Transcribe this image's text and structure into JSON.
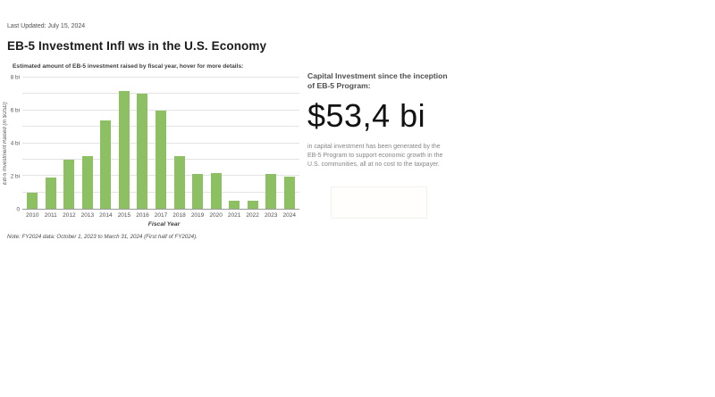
{
  "page": {
    "last_updated": "Last Updated: July 15, 2024",
    "title": "EB-5 Investment Infl ws in the U.S. Economy"
  },
  "chart": {
    "subtitle": "Estimated amount of EB-5 investment raised by fiscal year, hover for more details:",
    "note": "Note: FY2024 data: October 1, 2023 to March 31, 2024 (First half of FY2024)."
  },
  "chart_data": {
    "type": "bar",
    "title": "Estimated amount of EB-5 investment raised by fiscal year",
    "categories": [
      "2010",
      "2011",
      "2012",
      "2013",
      "2014",
      "2015",
      "2016",
      "2017",
      "2018",
      "2019",
      "2020",
      "2021",
      "2022",
      "2023",
      "2024"
    ],
    "values": [
      1.0,
      1.9,
      3.0,
      3.2,
      5.4,
      7.2,
      7.0,
      6.0,
      3.2,
      2.1,
      2.2,
      0.5,
      0.5,
      2.15,
      1.95
    ],
    "xlabel": "Fiscal Year",
    "ylabel": "EB-5 Investment Raised (in $USD)",
    "ylim": [
      0,
      8
    ],
    "grid_step": 1,
    "grid_on": true,
    "yticks": [
      {
        "v": 0,
        "label": "0"
      },
      {
        "v": 2,
        "label": "2 bi"
      },
      {
        "v": 4,
        "label": "4 bi"
      },
      {
        "v": 6,
        "label": "6 bi"
      },
      {
        "v": 8,
        "label": "8 bi"
      }
    ],
    "bar_color": "#8cc063",
    "legend_position": "none"
  },
  "panel": {
    "heading": "Capital Investment since the inception of EB-5 Program:",
    "big_number": "$53,4 bi",
    "body": "in capital investment has been generated by the EB-5 Program to support economic growth in the U.S. communities, all at no cost to the taxpayer."
  }
}
